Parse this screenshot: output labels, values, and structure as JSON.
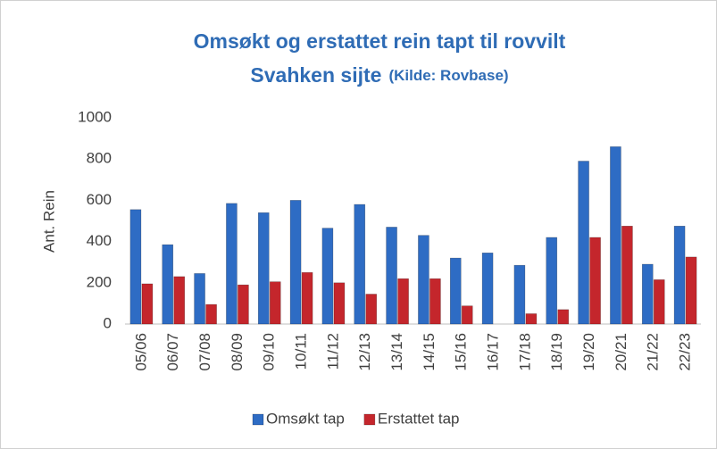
{
  "chart_data": {
    "type": "bar",
    "title": "Omsøkt og erstattet rein tapt til rovvilt",
    "subtitle": "Svahken sijte",
    "source": "(Kilde: Rovbase)",
    "y_label": "Ant. Rein",
    "categories": [
      "05/06",
      "06/07",
      "07/08",
      "08/09",
      "09/10",
      "10/11",
      "11/12",
      "12/13",
      "13/14",
      "14/15",
      "15/16",
      "16/17",
      "17/18",
      "18/19",
      "19/20",
      "20/21",
      "21/22",
      "22/23"
    ],
    "series": [
      {
        "name": "Omsøkt tap",
        "color": "#2e6cc4",
        "values": [
          555,
          385,
          245,
          585,
          540,
          600,
          465,
          580,
          470,
          430,
          320,
          345,
          285,
          420,
          790,
          860,
          290,
          475
        ]
      },
      {
        "name": "Erstattet tap",
        "color": "#c4262c",
        "values": [
          195,
          230,
          95,
          190,
          205,
          250,
          200,
          145,
          220,
          220,
          88,
          0,
          50,
          70,
          420,
          475,
          215,
          325
        ]
      }
    ],
    "ylim": [
      0,
      1000
    ],
    "yticks": [
      0,
      200,
      400,
      600,
      800,
      1000
    ],
    "grid": false,
    "legend": "bottom"
  }
}
